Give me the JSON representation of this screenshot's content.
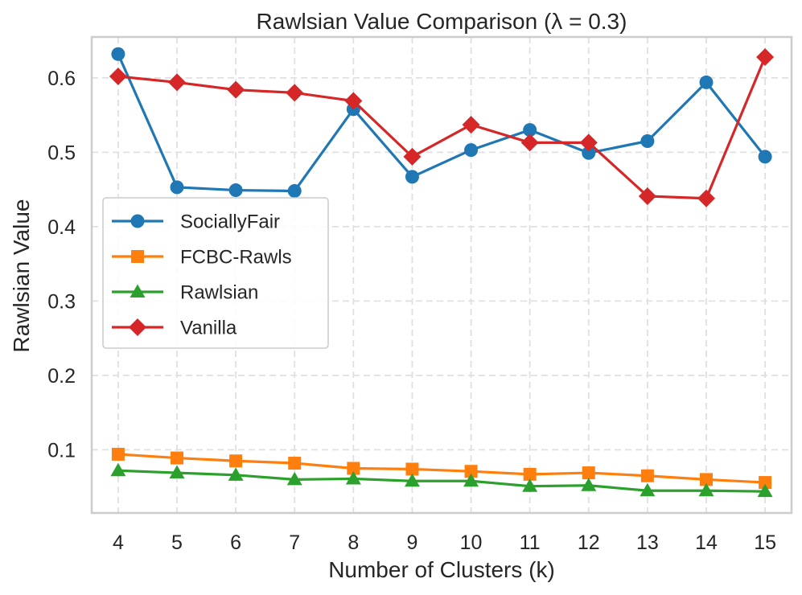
{
  "chart_data": {
    "type": "line",
    "title": "Rawlsian Value Comparison (λ = 0.3)",
    "xlabel": "Number of Clusters (k)",
    "ylabel": "Rawlsian Value",
    "x": [
      4,
      5,
      6,
      7,
      8,
      9,
      10,
      11,
      12,
      13,
      14,
      15
    ],
    "xticks": [
      "4",
      "5",
      "6",
      "7",
      "8",
      "9",
      "10",
      "11",
      "12",
      "13",
      "14",
      "15"
    ],
    "yticks": [
      "0.1",
      "0.2",
      "0.3",
      "0.4",
      "0.5",
      "0.6"
    ],
    "ylim": [
      0.015,
      0.655
    ],
    "xlim": [
      3.55,
      15.45
    ],
    "grid": true,
    "legend_position": "center-left",
    "series": [
      {
        "name": "SociallyFair",
        "color": "#1f77b4",
        "marker": "circle",
        "values": [
          0.632,
          0.453,
          0.449,
          0.448,
          0.558,
          0.467,
          0.503,
          0.53,
          0.499,
          0.515,
          0.594,
          0.494
        ]
      },
      {
        "name": "FCBC-Rawls",
        "color": "#ff7f0e",
        "marker": "square",
        "values": [
          0.094,
          0.089,
          0.085,
          0.082,
          0.075,
          0.074,
          0.071,
          0.067,
          0.069,
          0.065,
          0.06,
          0.056
        ]
      },
      {
        "name": "Rawlsian",
        "color": "#2ca02c",
        "marker": "triangle",
        "values": [
          0.072,
          0.069,
          0.066,
          0.06,
          0.061,
          0.058,
          0.058,
          0.051,
          0.052,
          0.045,
          0.045,
          0.044
        ]
      },
      {
        "name": "Vanilla",
        "color": "#d62728",
        "marker": "diamond",
        "values": [
          0.602,
          0.594,
          0.584,
          0.58,
          0.569,
          0.494,
          0.537,
          0.513,
          0.513,
          0.441,
          0.438,
          0.628
        ]
      }
    ]
  }
}
